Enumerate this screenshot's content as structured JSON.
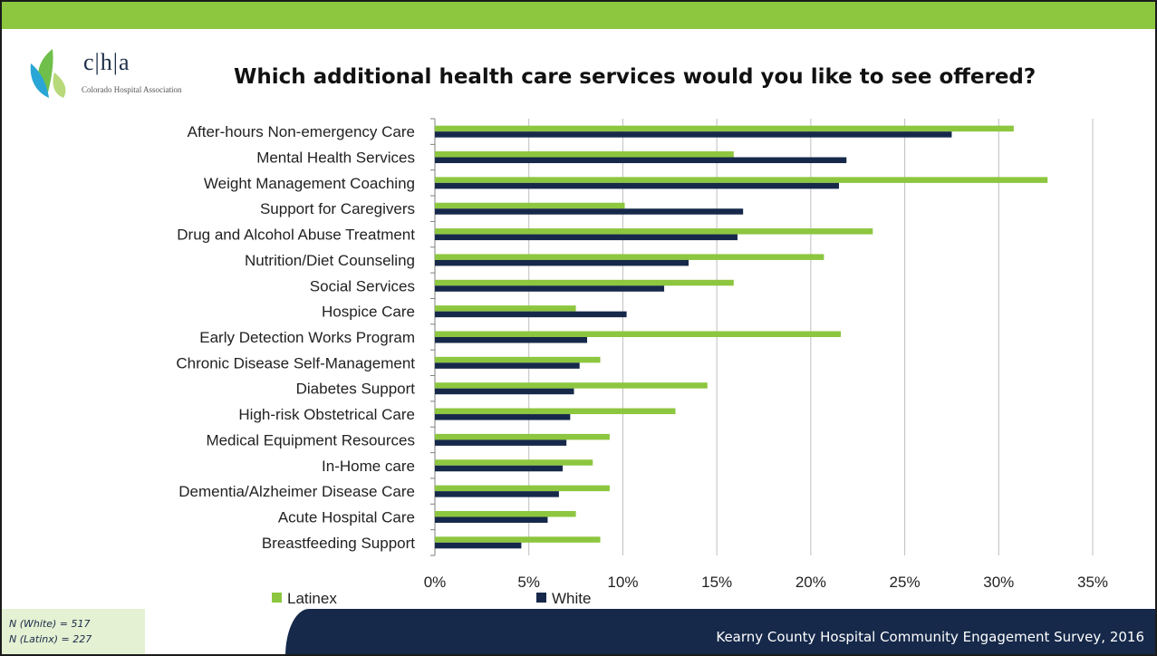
{
  "header": {
    "title": "Which additional health care services would you like to see offered?",
    "logo_text": "c|h|a",
    "logo_subtitle": "Colorado Hospital Association"
  },
  "footer": {
    "n_white": "N (White) = 517",
    "n_latinx": "N (Latinx) = 227",
    "source": "Kearny County Hospital Community Engagement Survey, 2016"
  },
  "colors": {
    "latinex": "#8dc63f",
    "white": "#16294a",
    "accent": "#8dc63f",
    "footer_dark": "#16294a"
  },
  "chart_data": {
    "type": "bar",
    "orientation": "horizontal",
    "categories": [
      "After-hours Non-emergency Care",
      "Mental Health Services",
      "Weight Management Coaching",
      "Support for Caregivers",
      "Drug and Alcohol Abuse Treatment",
      "Nutrition/Diet Counseling",
      "Social Services",
      "Hospice Care",
      "Early Detection Works Program",
      "Chronic Disease Self-Management",
      "Diabetes Support",
      "High-risk Obstetrical Care",
      "Medical Equipment Resources",
      "In-Home care",
      "Dementia/Alzheimer Disease Care",
      "Acute Hospital Care",
      "Breastfeeding Support"
    ],
    "series": [
      {
        "name": "Latinex",
        "color": "#8dc63f",
        "values": [
          30.8,
          15.9,
          32.6,
          10.1,
          23.3,
          20.7,
          15.9,
          7.5,
          21.6,
          8.8,
          14.5,
          12.8,
          9.3,
          8.4,
          9.3,
          7.5,
          8.8
        ]
      },
      {
        "name": "White",
        "color": "#16294a",
        "values": [
          27.5,
          21.9,
          21.5,
          16.4,
          16.1,
          13.5,
          12.2,
          10.2,
          8.1,
          7.7,
          7.4,
          7.2,
          7.0,
          6.8,
          6.6,
          6.0,
          4.6
        ]
      }
    ],
    "xlim": [
      0,
      35
    ],
    "xticks": [
      "0%",
      "5%",
      "10%",
      "15%",
      "20%",
      "25%",
      "30%",
      "35%"
    ],
    "grid": "vertical",
    "legend": "bottom"
  }
}
